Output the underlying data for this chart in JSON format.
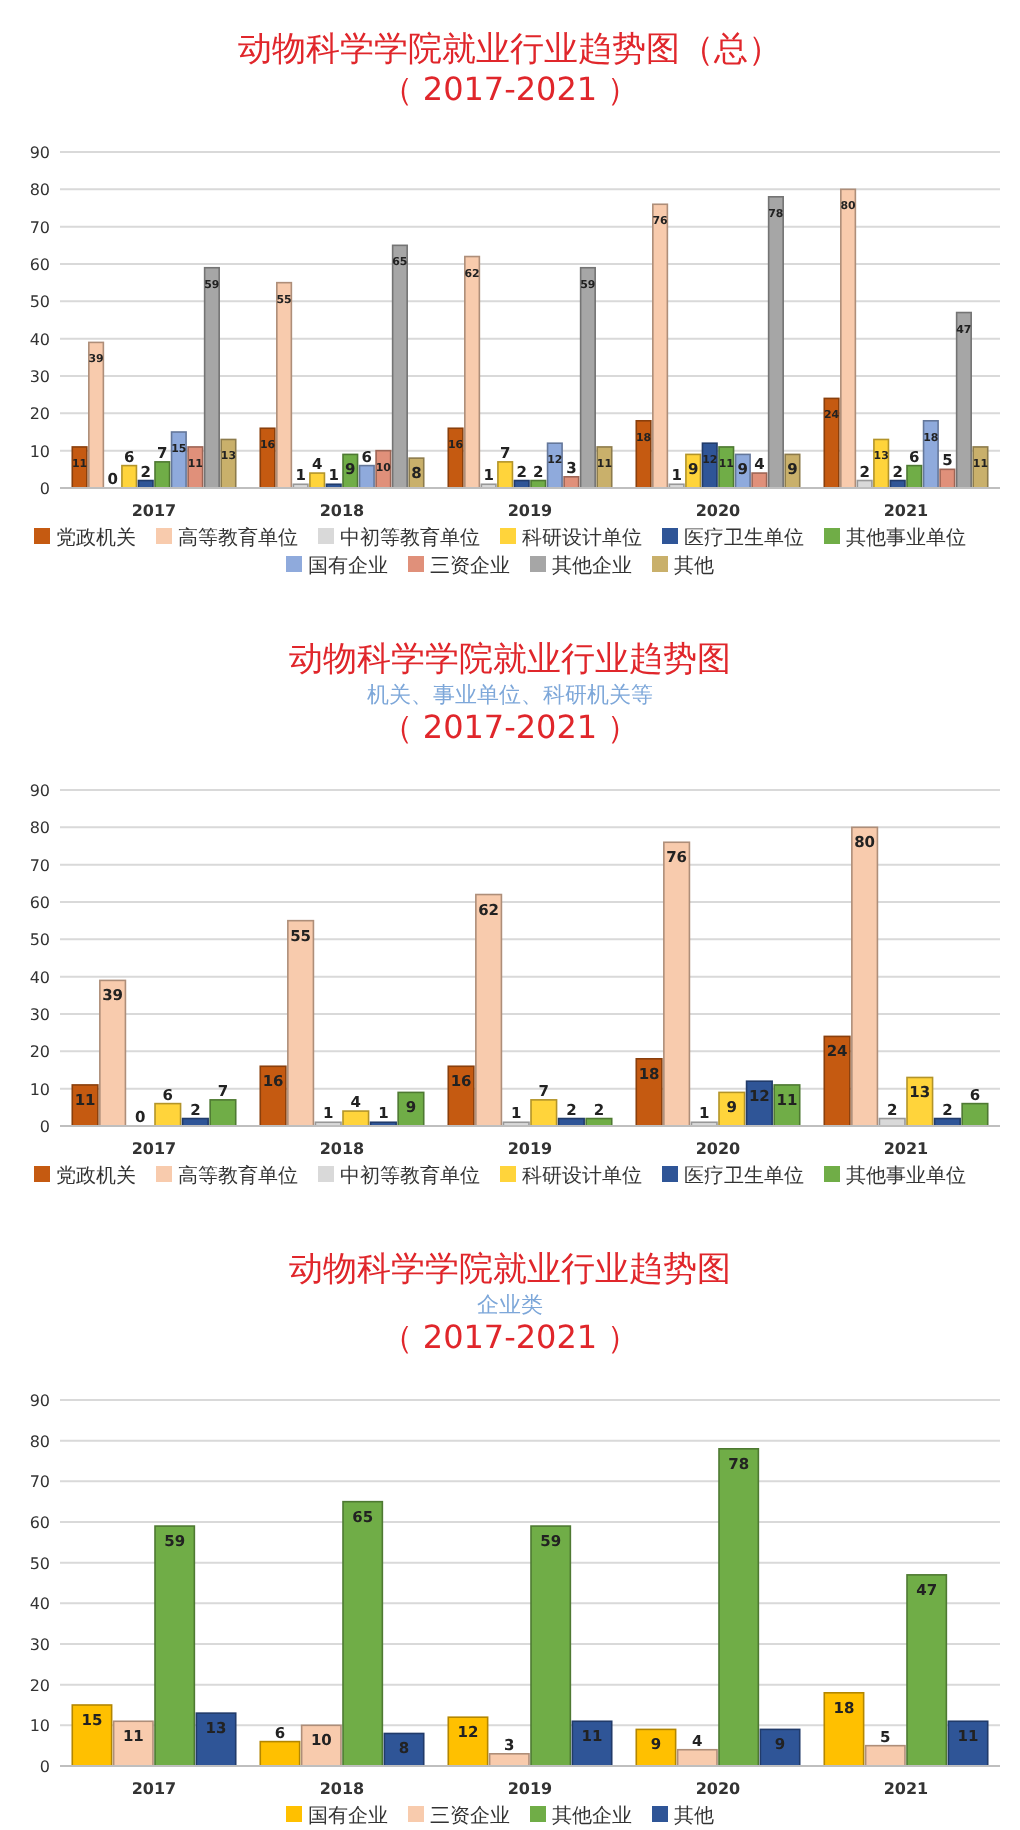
{
  "chart_data": [
    {
      "type": "bar",
      "title": "动物科学学院就业行业趋势图（总）",
      "annotations": [
        "（ 2017-2021 ）"
      ],
      "categories": [
        "2017",
        "2018",
        "2019",
        "2020",
        "2021"
      ],
      "series": [
        {
          "name": "党政机关",
          "color": "#c55a11",
          "values": [
            11,
            16,
            16,
            18,
            24
          ]
        },
        {
          "name": "高等教育单位",
          "color": "#f8cbad",
          "values": [
            39,
            55,
            62,
            76,
            80
          ]
        },
        {
          "name": "中初等教育单位",
          "color": "#d9d9d9",
          "values": [
            0,
            1,
            1,
            1,
            2
          ]
        },
        {
          "name": "科研设计单位",
          "color": "#ffd43b",
          "values": [
            6,
            4,
            7,
            9,
            13
          ]
        },
        {
          "name": "医疗卫生单位",
          "color": "#2f5597",
          "values": [
            2,
            1,
            2,
            12,
            2
          ]
        },
        {
          "name": "其他事业单位",
          "color": "#70ad47",
          "values": [
            7,
            9,
            2,
            11,
            6
          ]
        },
        {
          "name": "国有企业",
          "color": "#8faadc",
          "values": [
            15,
            6,
            12,
            9,
            18
          ]
        },
        {
          "name": "三资企业",
          "color": "#e0907a",
          "values": [
            11,
            10,
            3,
            4,
            5
          ]
        },
        {
          "name": "其他企业",
          "color": "#a6a6a6",
          "values": [
            59,
            65,
            59,
            78,
            47
          ]
        },
        {
          "name": "其他",
          "color": "#c9b06b",
          "values": [
            13,
            8,
            11,
            9,
            11
          ]
        }
      ],
      "ylim": [
        0,
        90
      ],
      "yticks": [
        0,
        10,
        20,
        30,
        40,
        50,
        60,
        70,
        80,
        90
      ],
      "grid": "y",
      "legend": "bottom",
      "data_labels": true
    },
    {
      "type": "bar",
      "title": "动物科学学院就业行业趋势图",
      "subtitle": "机关、事业单位、科研机关等",
      "annotations": [
        "（ 2017-2021 ）"
      ],
      "categories": [
        "2017",
        "2018",
        "2019",
        "2020",
        "2021"
      ],
      "series": [
        {
          "name": "党政机关",
          "color": "#c55a11",
          "values": [
            11,
            16,
            16,
            18,
            24
          ]
        },
        {
          "name": "高等教育单位",
          "color": "#f8cbad",
          "values": [
            39,
            55,
            62,
            76,
            80
          ]
        },
        {
          "name": "中初等教育单位",
          "color": "#d9d9d9",
          "values": [
            0,
            1,
            1,
            1,
            2
          ]
        },
        {
          "name": "科研设计单位",
          "color": "#ffd43b",
          "values": [
            6,
            4,
            7,
            9,
            13
          ]
        },
        {
          "name": "医疗卫生单位",
          "color": "#2f5597",
          "values": [
            2,
            1,
            2,
            12,
            2
          ]
        },
        {
          "name": "其他事业单位",
          "color": "#70ad47",
          "values": [
            7,
            9,
            2,
            11,
            6
          ]
        }
      ],
      "ylim": [
        0,
        90
      ],
      "yticks": [
        0,
        10,
        20,
        30,
        40,
        50,
        60,
        70,
        80,
        90
      ],
      "grid": "y",
      "legend": "bottom",
      "data_labels": true
    },
    {
      "type": "bar",
      "title": "动物科学学院就业行业趋势图",
      "subtitle": "企业类",
      "annotations": [
        "（ 2017-2021 ）"
      ],
      "categories": [
        "2017",
        "2018",
        "2019",
        "2020",
        "2021"
      ],
      "series": [
        {
          "name": "国有企业",
          "color": "#ffc000",
          "values": [
            15,
            6,
            12,
            9,
            18
          ]
        },
        {
          "name": "三资企业",
          "color": "#f8cbad",
          "values": [
            11,
            10,
            3,
            4,
            5
          ]
        },
        {
          "name": "其他企业",
          "color": "#70ad47",
          "values": [
            59,
            65,
            59,
            78,
            47
          ]
        },
        {
          "name": "其他",
          "color": "#2f5597",
          "values": [
            13,
            8,
            11,
            9,
            11
          ]
        }
      ],
      "ylim": [
        0,
        90
      ],
      "yticks": [
        0,
        10,
        20,
        30,
        40,
        50,
        60,
        70,
        80,
        90
      ],
      "grid": "y",
      "legend": "bottom",
      "data_labels": true
    }
  ]
}
